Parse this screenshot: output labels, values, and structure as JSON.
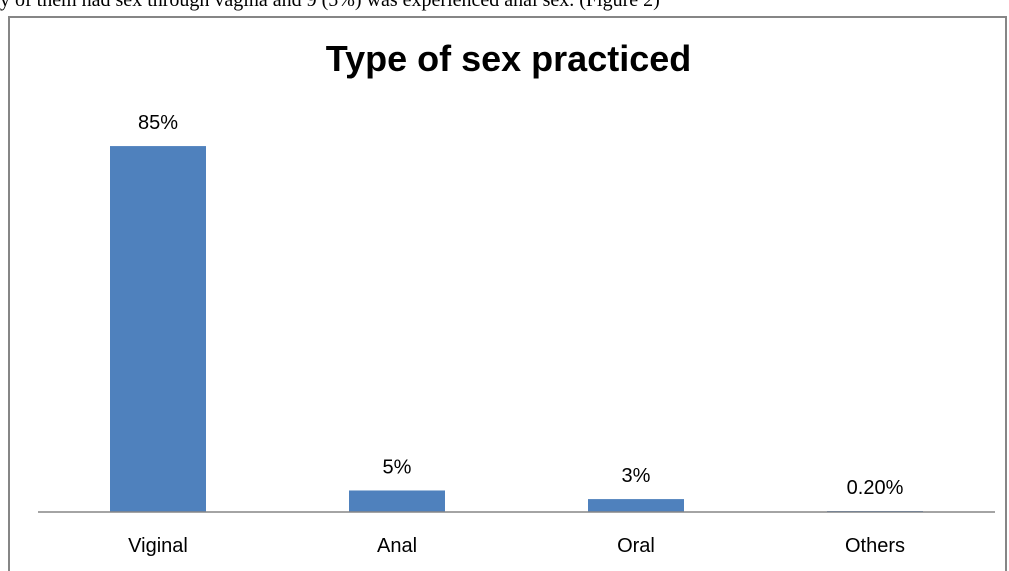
{
  "caption": "y of them had sex through vagina and 9 (5%) was experienced anal sex. (Figure 2)",
  "chart_data": {
    "type": "bar",
    "title": "Type of sex practiced",
    "xlabel": "",
    "ylabel": "",
    "categories": [
      "Viginal",
      "Anal",
      "Oral",
      "Others"
    ],
    "values": [
      85,
      5,
      3,
      0.2
    ],
    "data_labels": [
      "85%",
      "5%",
      "3%",
      "0.20%"
    ],
    "ylim": [
      0,
      100
    ],
    "grid": false,
    "legend": "none",
    "bar_color": "#4f81bd",
    "axis_color": "#868686"
  }
}
